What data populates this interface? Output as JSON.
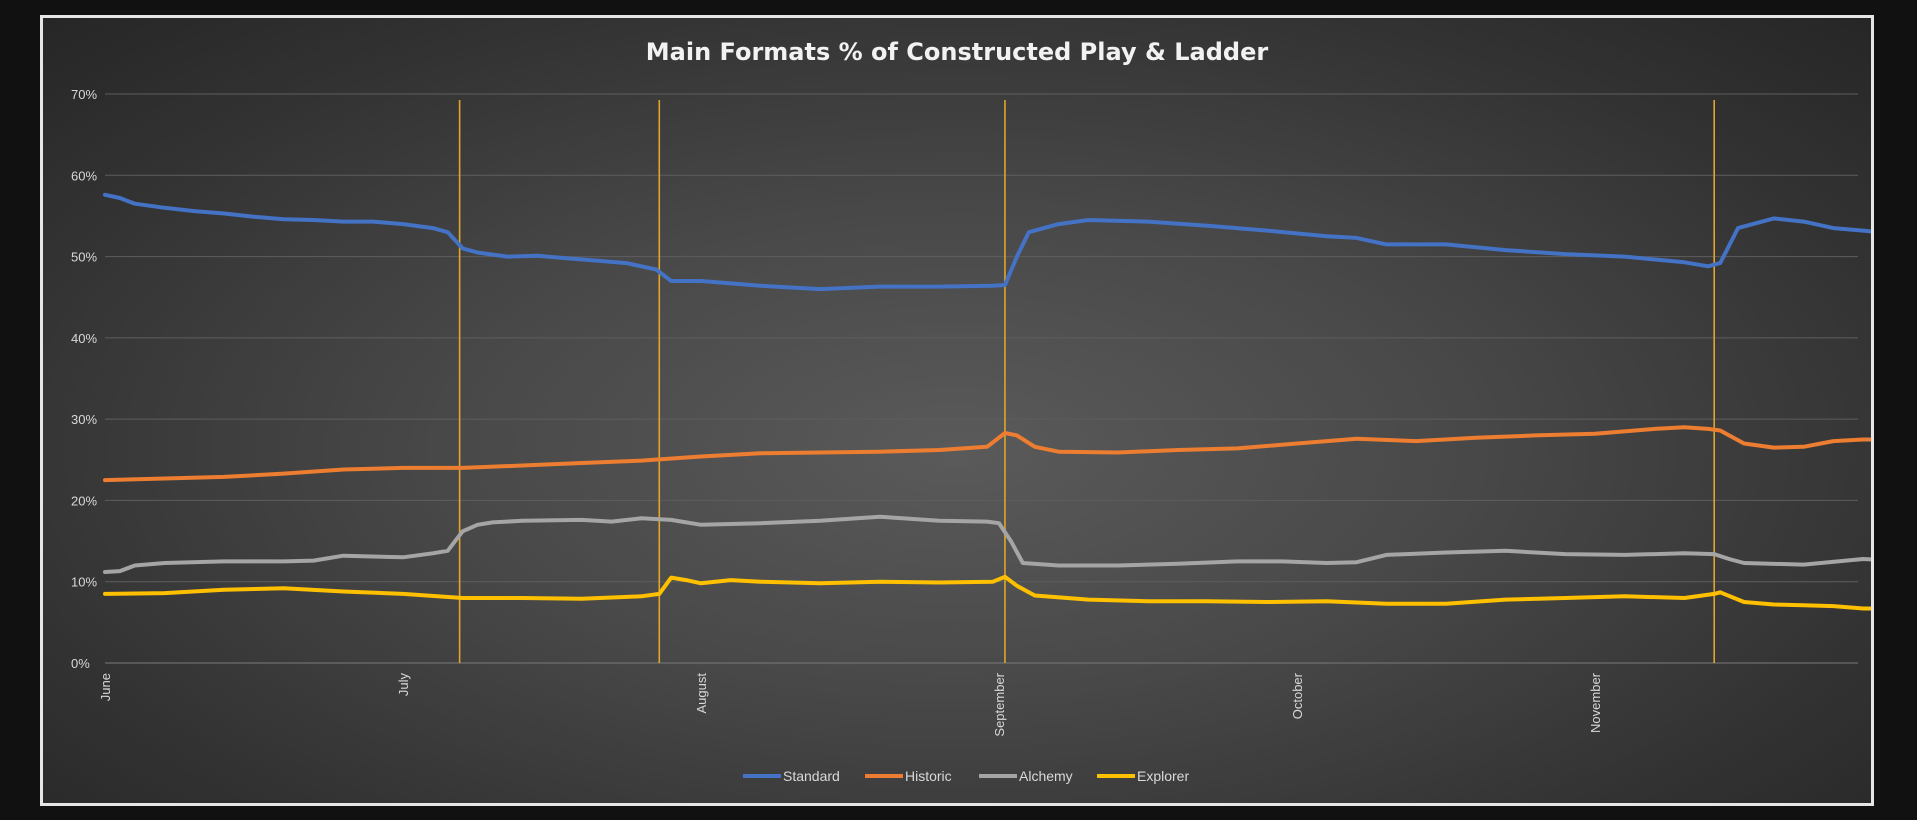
{
  "chart_data": {
    "type": "line",
    "title": "Main Formats % of Constructed Play & Ladder",
    "xlabel": "",
    "ylabel": "",
    "ylim": [
      0,
      70
    ],
    "yticks": [
      "0%",
      "10%",
      "20%",
      "30%",
      "40%",
      "50%",
      "60%",
      "70%"
    ],
    "ytick_values": [
      0,
      10,
      20,
      30,
      40,
      50,
      60,
      70
    ],
    "grid": true,
    "legend": "bottom",
    "x_range": [
      0,
      6.0
    ],
    "months": [
      {
        "label": "June",
        "x": 0
      },
      {
        "label": "July",
        "x": 1
      },
      {
        "label": "August",
        "x": 2
      },
      {
        "label": "September",
        "x": 3
      },
      {
        "label": "October",
        "x": 4
      },
      {
        "label": "November",
        "x": 5
      }
    ],
    "events": [
      1.19,
      1.86,
      3.02,
      5.4
    ],
    "event_color": "#e0a52a",
    "series": [
      {
        "name": "Standard",
        "color": "#4472c4",
        "x": [
          0,
          0.05,
          0.1,
          0.2,
          0.3,
          0.4,
          0.5,
          0.6,
          0.7,
          0.8,
          0.9,
          1.0,
          1.1,
          1.15,
          1.2,
          1.25,
          1.35,
          1.45,
          1.55,
          1.65,
          1.75,
          1.85,
          1.9,
          2.0,
          2.2,
          2.4,
          2.6,
          2.8,
          2.98,
          3.02,
          3.06,
          3.1,
          3.2,
          3.3,
          3.5,
          3.7,
          3.9,
          4.1,
          4.2,
          4.3,
          4.5,
          4.7,
          4.9,
          5.1,
          5.3,
          5.38,
          5.42,
          5.48,
          5.6,
          5.7,
          5.8,
          5.9,
          5.95
        ],
        "values": [
          57.6,
          57.2,
          56.5,
          56.0,
          55.6,
          55.3,
          54.9,
          54.6,
          54.5,
          54.3,
          54.3,
          54.0,
          53.5,
          53.0,
          51.0,
          50.5,
          50.0,
          50.1,
          49.8,
          49.5,
          49.2,
          48.4,
          47.0,
          47.0,
          46.4,
          46.0,
          46.3,
          46.3,
          46.4,
          46.5,
          50.0,
          53.0,
          54.0,
          54.5,
          54.3,
          53.8,
          53.2,
          52.5,
          52.3,
          51.5,
          51.5,
          50.8,
          50.3,
          50.0,
          49.3,
          48.8,
          49.2,
          53.5,
          54.7,
          54.3,
          53.5,
          53.2,
          53.0
        ]
      },
      {
        "name": "Historic",
        "color": "#ed7d31",
        "x": [
          0,
          0.2,
          0.4,
          0.6,
          0.8,
          1.0,
          1.2,
          1.4,
          1.6,
          1.8,
          2.0,
          2.2,
          2.4,
          2.6,
          2.8,
          2.96,
          3.02,
          3.06,
          3.12,
          3.2,
          3.4,
          3.6,
          3.8,
          4.0,
          4.2,
          4.4,
          4.6,
          4.8,
          5.0,
          5.2,
          5.3,
          5.38,
          5.42,
          5.5,
          5.6,
          5.7,
          5.8,
          5.9,
          5.95
        ],
        "values": [
          22.5,
          22.7,
          22.9,
          23.3,
          23.8,
          24.0,
          24.0,
          24.3,
          24.6,
          24.9,
          25.4,
          25.8,
          25.9,
          26.0,
          26.2,
          26.6,
          28.3,
          28.0,
          26.6,
          26.0,
          25.9,
          26.2,
          26.4,
          27.0,
          27.6,
          27.3,
          27.7,
          28.0,
          28.2,
          28.8,
          29.0,
          28.8,
          28.6,
          27.0,
          26.5,
          26.6,
          27.3,
          27.5,
          27.5
        ]
      },
      {
        "name": "Alchemy",
        "color": "#a5a5a5",
        "x": [
          0,
          0.05,
          0.1,
          0.2,
          0.4,
          0.6,
          0.7,
          0.8,
          1.0,
          1.1,
          1.15,
          1.2,
          1.25,
          1.3,
          1.4,
          1.6,
          1.7,
          1.8,
          1.9,
          2.0,
          2.2,
          2.4,
          2.6,
          2.8,
          2.96,
          3.0,
          3.04,
          3.08,
          3.2,
          3.4,
          3.6,
          3.8,
          3.95,
          4.1,
          4.2,
          4.3,
          4.5,
          4.7,
          4.9,
          5.1,
          5.3,
          5.4,
          5.45,
          5.5,
          5.7,
          5.9,
          5.95
        ],
        "values": [
          11.2,
          11.3,
          12.0,
          12.3,
          12.5,
          12.5,
          12.6,
          13.2,
          13.0,
          13.5,
          13.8,
          16.2,
          17.0,
          17.3,
          17.5,
          17.6,
          17.4,
          17.8,
          17.6,
          17.0,
          17.2,
          17.5,
          18.0,
          17.5,
          17.4,
          17.2,
          15.0,
          12.3,
          12.0,
          12.0,
          12.2,
          12.5,
          12.5,
          12.3,
          12.4,
          13.3,
          13.6,
          13.8,
          13.4,
          13.3,
          13.5,
          13.4,
          12.8,
          12.3,
          12.1,
          12.8,
          12.7
        ]
      },
      {
        "name": "Explorer",
        "color": "#ffc000",
        "x": [
          0,
          0.2,
          0.4,
          0.6,
          0.8,
          1.0,
          1.2,
          1.4,
          1.6,
          1.8,
          1.86,
          1.9,
          1.95,
          2.0,
          2.1,
          2.2,
          2.4,
          2.6,
          2.8,
          2.98,
          3.02,
          3.06,
          3.12,
          3.3,
          3.5,
          3.7,
          3.9,
          4.1,
          4.3,
          4.5,
          4.7,
          4.9,
          5.1,
          5.3,
          5.4,
          5.42,
          5.5,
          5.6,
          5.7,
          5.8,
          5.9,
          5.95
        ],
        "values": [
          8.5,
          8.6,
          9.0,
          9.2,
          8.8,
          8.5,
          8.0,
          8.0,
          7.9,
          8.2,
          8.5,
          10.5,
          10.2,
          9.8,
          10.2,
          10.0,
          9.8,
          10.0,
          9.9,
          10.0,
          10.6,
          9.5,
          8.3,
          7.8,
          7.6,
          7.6,
          7.5,
          7.6,
          7.3,
          7.3,
          7.8,
          8.0,
          8.2,
          8.0,
          8.5,
          8.7,
          7.5,
          7.2,
          7.1,
          7.0,
          6.7,
          6.7
        ]
      }
    ]
  }
}
